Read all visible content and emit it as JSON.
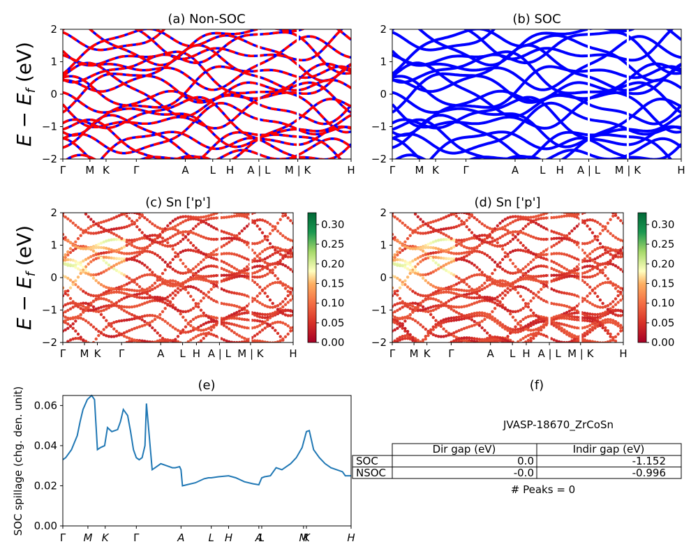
{
  "figure": {
    "ylabel_energy": "E − E_f (eV)",
    "ylabel_energy_main": "E − E",
    "ylabel_energy_sub": "f",
    "ylabel_energy_unit": " (eV)",
    "kpath_labels": [
      "Γ",
      "M",
      "K",
      "Γ",
      "A",
      "L",
      "H",
      "A | L",
      "M | K",
      "H"
    ],
    "kpath_labels_e": [
      "Γ",
      "M",
      "K",
      "Γ",
      "A",
      "L",
      "H",
      "A",
      "L",
      "M",
      "K",
      "H"
    ]
  },
  "chart_data": [
    {
      "id": "a",
      "type": "line",
      "title": "(a) Non-SOC",
      "ylim": [
        -2,
        2
      ],
      "yticks": [
        -2,
        -1,
        0,
        1,
        2
      ],
      "xlabel": "",
      "ylabel": "E − E_f (eV)",
      "kpath_positions": [
        0,
        0.094,
        0.15,
        0.255,
        0.425,
        0.52,
        0.58,
        0.68,
        0.815,
        1.0
      ],
      "colors": {
        "up": "#0000ff",
        "down": "#ff0000"
      },
      "line_style": "dashed red over blue"
    },
    {
      "id": "b",
      "type": "line",
      "title": "(b) SOC",
      "ylim": [
        -2,
        2
      ],
      "yticks": [
        -2,
        -1,
        0,
        1,
        2
      ],
      "kpath_positions": [
        0,
        0.094,
        0.15,
        0.255,
        0.425,
        0.52,
        0.58,
        0.68,
        0.815,
        1.0
      ],
      "colors": {
        "band": "#0000ff"
      }
    },
    {
      "id": "c",
      "type": "scatter",
      "title": "(c)  Sn ['p']",
      "ylim": [
        -2,
        2
      ],
      "yticks": [
        -2,
        -1,
        0,
        1,
        2
      ],
      "ylabel": "E − E_f (eV)",
      "kpath_positions": [
        0,
        0.094,
        0.15,
        0.255,
        0.425,
        0.52,
        0.58,
        0.68,
        0.815,
        1.0
      ],
      "colorbar": {
        "min": 0.0,
        "max": 0.33,
        "ticks": [
          "0.00",
          "0.05",
          "0.10",
          "0.15",
          "0.20",
          "0.25",
          "0.30"
        ],
        "colormap": "RdYlGn"
      }
    },
    {
      "id": "d",
      "type": "scatter",
      "title": "(d) Sn ['p']",
      "ylim": [
        -2,
        2
      ],
      "yticks": [
        -2,
        -1,
        0,
        1,
        2
      ],
      "kpath_positions": [
        0,
        0.094,
        0.15,
        0.255,
        0.425,
        0.52,
        0.58,
        0.68,
        0.815,
        1.0
      ],
      "colorbar": {
        "min": 0.0,
        "max": 0.33,
        "ticks": [
          "0.00",
          "0.05",
          "0.10",
          "0.15",
          "0.20",
          "0.25",
          "0.30"
        ],
        "colormap": "RdYlGn"
      }
    },
    {
      "id": "e",
      "type": "line",
      "title": "(e)",
      "xlabel": "",
      "ylabel": "SOC spillage (chg. den. unit)",
      "ylim": [
        0,
        0.065
      ],
      "yticks": [
        "0.00",
        "0.02",
        "0.04",
        "0.06"
      ],
      "ytick_values": [
        0,
        0.02,
        0.04,
        0.06
      ],
      "kpath_positions": [
        0,
        0.087,
        0.147,
        0.255,
        0.41,
        0.515,
        0.575,
        0.68,
        0.69,
        0.835,
        0.845,
        1.0
      ],
      "x": [
        0,
        0.01,
        0.03,
        0.05,
        0.06,
        0.07,
        0.085,
        0.1,
        0.11,
        0.12,
        0.13,
        0.145,
        0.155,
        0.17,
        0.19,
        0.2,
        0.21,
        0.225,
        0.235,
        0.245,
        0.255,
        0.265,
        0.275,
        0.285,
        0.29,
        0.31,
        0.32,
        0.34,
        0.36,
        0.38,
        0.39,
        0.405,
        0.41,
        0.415,
        0.43,
        0.46,
        0.49,
        0.505,
        0.515,
        0.54,
        0.575,
        0.6,
        0.63,
        0.66,
        0.68,
        0.69,
        0.7,
        0.72,
        0.74,
        0.76,
        0.79,
        0.81,
        0.83,
        0.845,
        0.855,
        0.87,
        0.89,
        0.91,
        0.93,
        0.95,
        0.97,
        0.98,
        1.0
      ],
      "y": [
        0.033,
        0.034,
        0.038,
        0.045,
        0.052,
        0.058,
        0.063,
        0.065,
        0.063,
        0.038,
        0.039,
        0.04,
        0.049,
        0.047,
        0.048,
        0.052,
        0.058,
        0.055,
        0.047,
        0.038,
        0.034,
        0.033,
        0.034,
        0.04,
        0.061,
        0.028,
        0.029,
        0.031,
        0.03,
        0.029,
        0.029,
        0.0295,
        0.028,
        0.02,
        0.0205,
        0.0215,
        0.0235,
        0.024,
        0.024,
        0.0245,
        0.025,
        0.024,
        0.022,
        0.021,
        0.0205,
        0.024,
        0.0245,
        0.025,
        0.029,
        0.028,
        0.031,
        0.034,
        0.039,
        0.047,
        0.0475,
        0.038,
        0.034,
        0.031,
        0.029,
        0.028,
        0.027,
        0.025,
        0.025
      ],
      "color": "#1f77b4"
    },
    {
      "id": "f",
      "type": "table",
      "title": "(f)",
      "caption": "JVASP-18670_ZrCoSn",
      "columns": [
        "Dir gap (eV)",
        "Indir gap (eV)"
      ],
      "rows": [
        {
          "label": "SOC",
          "values": [
            "0.0",
            "-1.152"
          ]
        },
        {
          "label": "NSOC",
          "values": [
            "-0.0",
            "-0.996"
          ]
        }
      ],
      "footer": "# Peaks = 0"
    }
  ]
}
